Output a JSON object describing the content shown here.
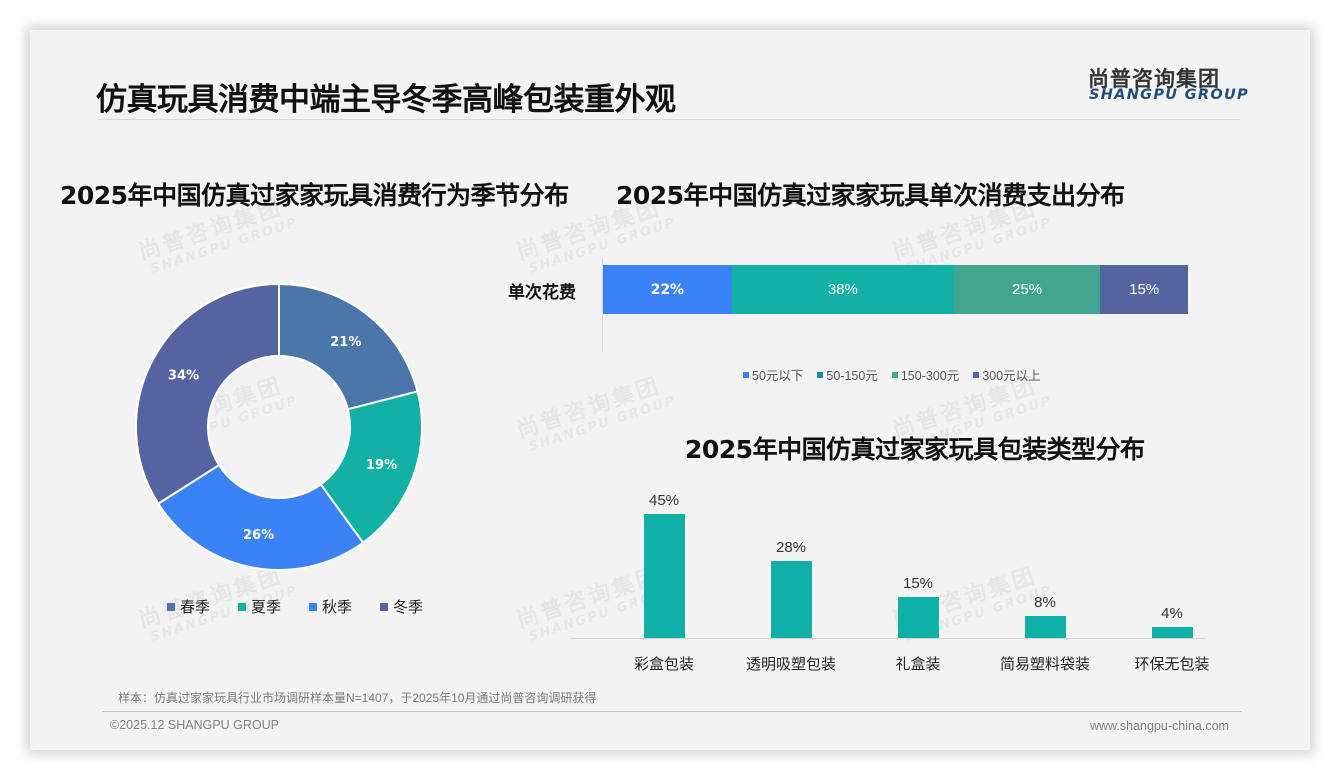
{
  "header": {
    "title": "仿真玩具消费中端主导冬季高峰包装重外观",
    "logo_cn": "尚普咨询集团",
    "logo_en": "SHANGPU GROUP"
  },
  "watermark": {
    "cn": "尚普咨询集团",
    "en": "SHANGPU GROUP"
  },
  "colors": {
    "spring": "#4a76aa",
    "summer": "#12b0a5",
    "autumn": "#3b82f6",
    "winter": "#5563a0",
    "spend_lt50": "#3b82f6",
    "spend_50_150": "#12b0a5",
    "spend_150_300": "#41a590",
    "spend_gt300": "#5563a0",
    "spend_legend_50_150": "#1a8c92",
    "column": "#0fb0a6"
  },
  "chart_data": [
    {
      "type": "pie",
      "subtype": "donut",
      "title": "2025年中国仿真过家家玩具消费行为季节分布",
      "categories": [
        "春季",
        "夏季",
        "秋季",
        "冬季"
      ],
      "values": [
        21,
        19,
        26,
        34
      ],
      "labels": [
        "21%",
        "19%",
        "26%",
        "34%"
      ],
      "legend_position": "bottom"
    },
    {
      "type": "bar",
      "orientation": "horizontal",
      "stacked": true,
      "title": "2025年中国仿真过家家玩具单次消费支出分布",
      "categories": [
        "单次花费"
      ],
      "series": [
        {
          "name": "50元以下",
          "values": [
            22
          ],
          "label": "22%"
        },
        {
          "name": "50-150元",
          "values": [
            38
          ],
          "label": "38%"
        },
        {
          "name": "150-300元",
          "values": [
            25
          ],
          "label": "25%"
        },
        {
          "name": "300元以上",
          "values": [
            15
          ],
          "label": "15%"
        }
      ],
      "xlim": [
        0,
        100
      ],
      "legend_position": "bottom"
    },
    {
      "type": "bar",
      "title": "2025年中国仿真过家家玩具包装类型分布",
      "categories": [
        "彩盒包装",
        "透明吸塑包装",
        "礼盒装",
        "简易塑料袋装",
        "环保无包装"
      ],
      "values": [
        45,
        28,
        15,
        8,
        4
      ],
      "labels": [
        "45%",
        "28%",
        "15%",
        "8%",
        "4%"
      ],
      "xlabel": "",
      "ylabel": "",
      "grid": false
    }
  ],
  "donut": {
    "title": "2025年中国仿真过家家玩具消费行为季节分布",
    "segments": [
      {
        "name": "春季",
        "value": 21,
        "label": "21%"
      },
      {
        "name": "夏季",
        "value": 19,
        "label": "19%"
      },
      {
        "name": "秋季",
        "value": 26,
        "label": "26%"
      },
      {
        "name": "冬季",
        "value": 34,
        "label": "34%"
      }
    ]
  },
  "spend": {
    "title": "2025年中国仿真过家家玩具单次消费支出分布",
    "category": "单次花费",
    "segments": [
      {
        "name": "50元以下",
        "value": 22,
        "label": "22%"
      },
      {
        "name": "50-150元",
        "value": 38,
        "label": "38%"
      },
      {
        "name": "150-300元",
        "value": 25,
        "label": "25%"
      },
      {
        "name": "300元以上",
        "value": 15,
        "label": "15%"
      }
    ]
  },
  "packaging": {
    "title": "2025年中国仿真过家家玩具包装类型分布",
    "items": [
      {
        "name": "彩盒包装",
        "value": 45,
        "label": "45%"
      },
      {
        "name": "透明吸塑包装",
        "value": 28,
        "label": "28%"
      },
      {
        "name": "礼盒装",
        "value": 15,
        "label": "15%"
      },
      {
        "name": "简易塑料袋装",
        "value": 8,
        "label": "8%"
      },
      {
        "name": "环保无包装",
        "value": 4,
        "label": "4%"
      }
    ]
  },
  "footer": {
    "note": "样本：仿真过家家玩具行业市场调研样本量N=1407，于2025年10月通过尚普咨询调研获得",
    "copyright": "©2025.12 SHANGPU GROUP",
    "website": "www.shangpu-china.com"
  }
}
